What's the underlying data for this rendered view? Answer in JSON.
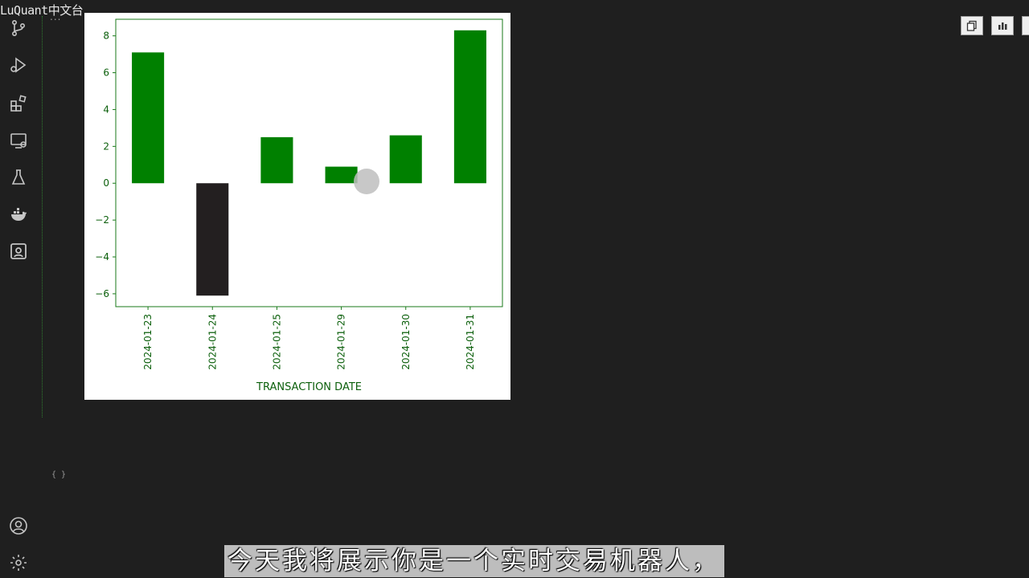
{
  "watermark": "LuQuant中文台",
  "sidebar": {
    "icons": [
      "source-control-icon",
      "run-debug-icon",
      "extensions-icon",
      "remote-explorer-icon",
      "testing-icon",
      "docker-icon",
      "jupyter-icon"
    ],
    "bottom_icons": [
      "account-icon",
      "settings-gear-icon"
    ]
  },
  "cell": {
    "dots": "...",
    "braces": "{ }"
  },
  "toolbar": {
    "buttons": [
      "copy-icon",
      "chart-icon"
    ]
  },
  "colors": {
    "positive_bar": "#008000",
    "negative_bar": "#231f20",
    "axis": "#1a7a1a",
    "tick_text": "#0b5f0b"
  },
  "chart_data": {
    "type": "bar",
    "categories": [
      "2024-01-23",
      "2024-01-24",
      "2024-01-25",
      "2024-01-29",
      "2024-01-30",
      "2024-01-31"
    ],
    "values": [
      7.1,
      -6.1,
      2.5,
      0.9,
      2.6,
      8.3
    ],
    "xlabel": "TRANSACTION DATE",
    "ylabel": "",
    "ylim": [
      -6.7,
      8.9
    ],
    "yticks": [
      -6,
      -4,
      -2,
      0,
      2,
      4,
      6,
      8
    ],
    "ytick_labels": [
      "−6",
      "−4",
      "−2",
      "0",
      "2",
      "4",
      "6",
      "8"
    ],
    "grid": false,
    "legend": "none"
  },
  "subtitle": "今天我将展示你是一个实时交易机器人，"
}
